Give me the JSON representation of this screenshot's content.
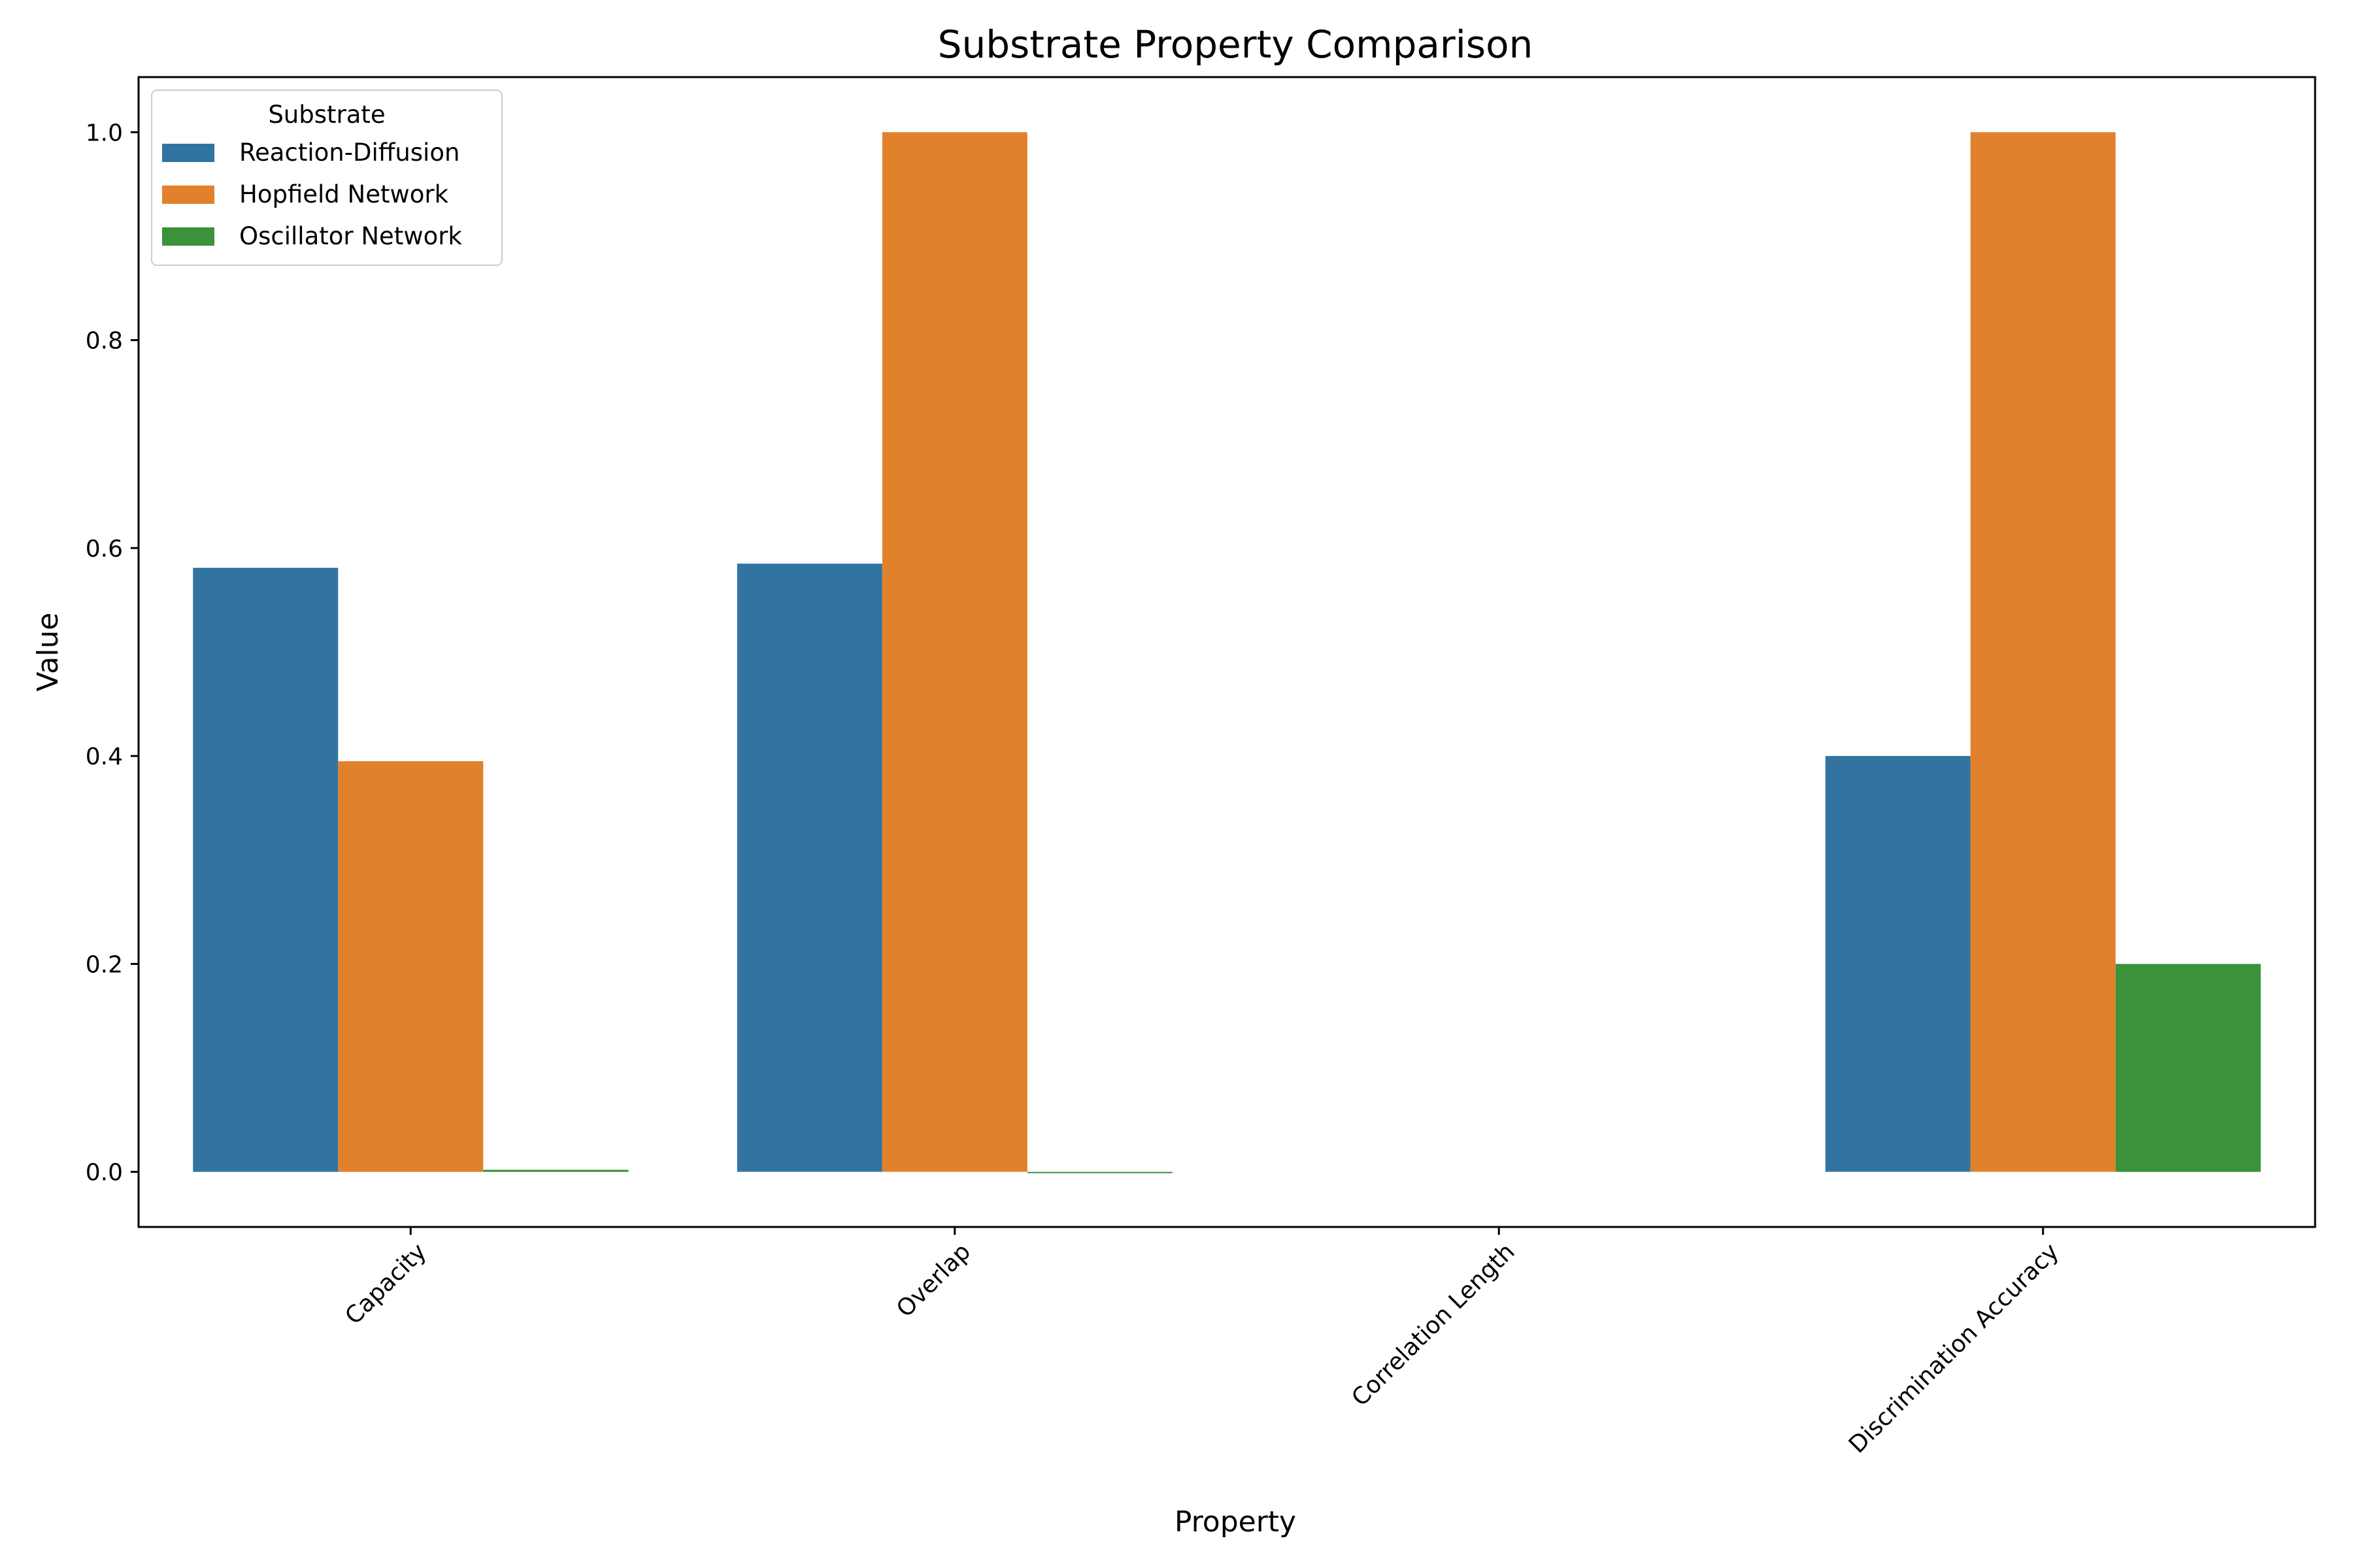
{
  "chart_data": {
    "type": "bar",
    "title": "Substrate Property Comparison",
    "xlabel": "Property",
    "ylabel": "Value",
    "categories": [
      "Capacity",
      "Overlap",
      "Correlation Length",
      "Discrimination Accuracy"
    ],
    "series": [
      {
        "name": "Reaction-Diffusion",
        "values": [
          0.581,
          0.585,
          0.0,
          0.4
        ],
        "color": "#3274a1"
      },
      {
        "name": "Hopfield Network",
        "values": [
          0.395,
          1.0,
          0.0,
          1.0
        ],
        "color": "#e1812c"
      },
      {
        "name": "Oscillator Network",
        "values": [
          0.002,
          -0.001,
          0.0,
          0.2
        ],
        "color": "#3a923a"
      }
    ],
    "ylim": [
      -0.053,
      1.053
    ],
    "yticks": [
      "0.0",
      "0.2",
      "0.4",
      "0.6",
      "0.8",
      "1.0"
    ],
    "grid": false,
    "legend": {
      "title": "Substrate",
      "position": "upper-left"
    }
  }
}
